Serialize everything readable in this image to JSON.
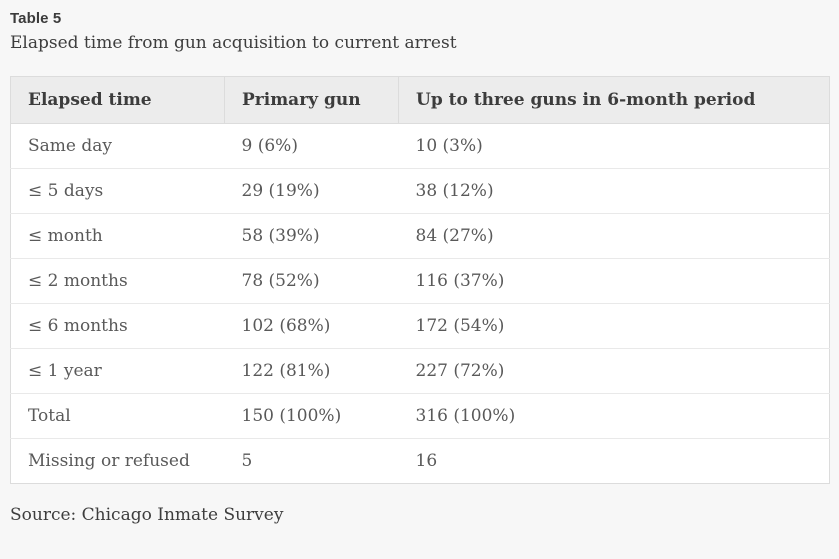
{
  "page": {
    "label": "Table 5",
    "caption": "Elapsed time from gun acquisition to current arrest",
    "source": "Source: Chicago Inmate Survey"
  },
  "table": {
    "columns": [
      "Elapsed time",
      "Primary gun",
      "Up to three guns in 6-month period"
    ],
    "rows": [
      [
        "Same day",
        "9 (6%)",
        "10 (3%)"
      ],
      [
        "≤ 5 days",
        "29 (19%)",
        "38 (12%)"
      ],
      [
        "≤ month",
        "58 (39%)",
        "84 (27%)"
      ],
      [
        "≤ 2 months",
        "78 (52%)",
        "116 (37%)"
      ],
      [
        "≤ 6 months",
        "102 (68%)",
        "172 (54%)"
      ],
      [
        "≤ 1 year",
        "122 (81%)",
        "227 (72%)"
      ],
      [
        "Total",
        "150 (100%)",
        "316 (100%)"
      ],
      [
        "Missing or refused",
        "5",
        "16"
      ]
    ]
  },
  "colors": {
    "page_background": "#f7f7f7",
    "header_background": "#ececec",
    "row_background": "#ffffff",
    "border": "#dcdcdc",
    "row_divider": "#e9e9e9",
    "header_text": "#3c3c3c",
    "body_text": "#595959",
    "title_text": "#3b3b3b"
  }
}
